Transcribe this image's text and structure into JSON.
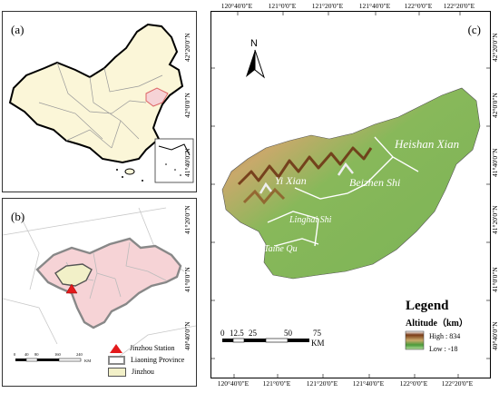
{
  "panels": {
    "a": {
      "label": "(a)"
    },
    "b": {
      "label": "(b)"
    },
    "c": {
      "label": "(c)"
    }
  },
  "coords": {
    "top": [
      "120°40'0\"E",
      "121°0'0\"E",
      "121°20'0\"E",
      "121°40'0\"E",
      "122°0'0\"E",
      "122°20'0\"E"
    ],
    "bottom": [
      "120°40'0\"E",
      "121°0'0\"E",
      "121°20'0\"E",
      "121°40'0\"E",
      "122°0'0\"E",
      "122°20'0\"E"
    ],
    "left": [
      "42°20'0\"N",
      "42°0'0\"N",
      "41°40'0\"N",
      "41°20'0\"N",
      "41°0'0\"N",
      "40°40'0\"N"
    ],
    "right": [
      "42°20'0\"N",
      "42°0'0\"N",
      "41°40'0\"N",
      "41°20'0\"N",
      "41°0'0\"N",
      "40°40'0\"N"
    ]
  },
  "map_c": {
    "north": "N",
    "place_labels": {
      "heishan": "Heishan Xian",
      "yi": "Yi Xian",
      "beizhen": "Beizhen Shi",
      "linghai": "Linghai Shi",
      "taihe": "Taihe Qu"
    },
    "scale_bar": {
      "ticks": [
        "0",
        "12.5",
        "25",
        "50",
        "75"
      ],
      "unit": "KM"
    },
    "legend": {
      "title": "Legend",
      "subtitle": "Altitude（km）",
      "high": "High : 834",
      "low": "Low : -18"
    }
  },
  "map_b": {
    "scale_ticks": [
      "0",
      "40",
      "80",
      "160",
      "240"
    ],
    "scale_unit": "KM",
    "legend": [
      {
        "label": "Jinzhou Station",
        "symbol": "triangle",
        "color": "#e31a1c"
      },
      {
        "label": "Liaoning Province",
        "symbol": "outline",
        "color": "#888888"
      },
      {
        "label": "Jinzhou",
        "symbol": "fill",
        "color": "#f0f0c0"
      }
    ]
  },
  "colors": {
    "china_fill": "#fbf6d8",
    "liaoning_fill": "#f6d3d6",
    "jinzhou_fill": "#f2f0c8",
    "terrain_low": "#6fb04d",
    "terrain_mid": "#c8a96b",
    "terrain_high": "#7a3b16"
  }
}
